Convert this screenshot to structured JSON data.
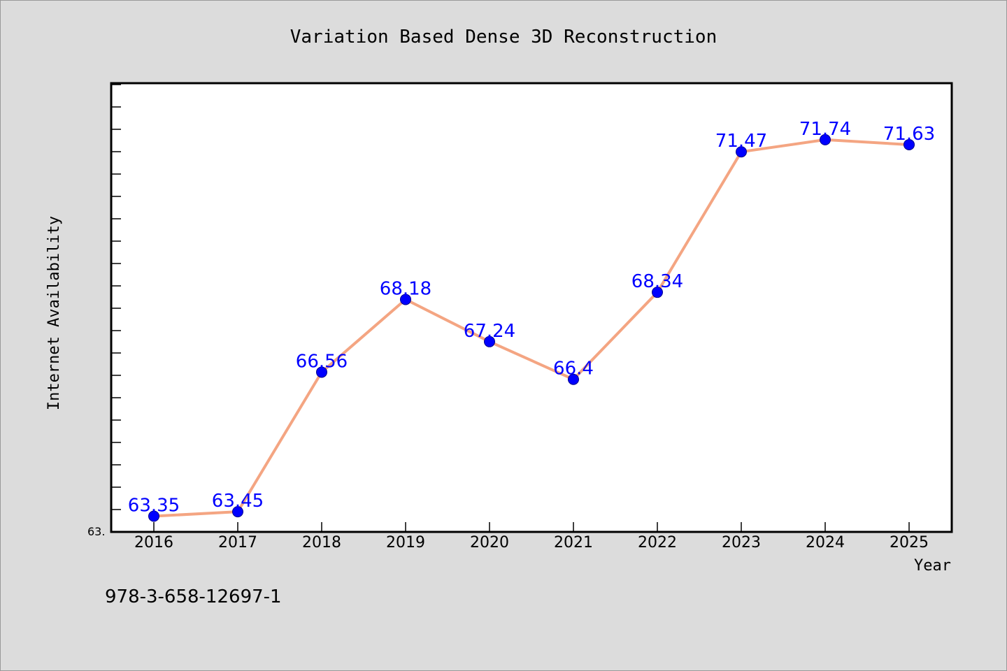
{
  "chart_data": {
    "type": "line",
    "title": "Variation Based Dense 3D Reconstruction",
    "xlabel": "Year",
    "ylabel": "Internet Availability",
    "categories": [
      "2016",
      "2017",
      "2018",
      "2019",
      "2020",
      "2021",
      "2022",
      "2023",
      "2024",
      "2025"
    ],
    "series": [
      {
        "values": [
          63.35,
          63.45,
          66.56,
          68.18,
          67.24,
          66.4,
          68.34,
          71.47,
          71.74,
          71.63
        ],
        "labels": [
          "63.35",
          "63.45",
          "66.56",
          "68.18",
          "67.24",
          "66.4",
          "68.34",
          "71.47",
          "71.74",
          "71.63"
        ],
        "line_color": "#f4a582",
        "marker_color": "#0000ff",
        "label_color": "#0000ff"
      }
    ],
    "ylim": [
      63.0,
      73.0
    ],
    "y_tick_labels": [
      "63."
    ],
    "grid": false,
    "legend": "none"
  },
  "footer": {
    "isbn": "978-3-658-12697-1"
  },
  "colors": {
    "background": "#dcdcdc",
    "plot_background": "#ffffff",
    "axis": "#000000"
  }
}
